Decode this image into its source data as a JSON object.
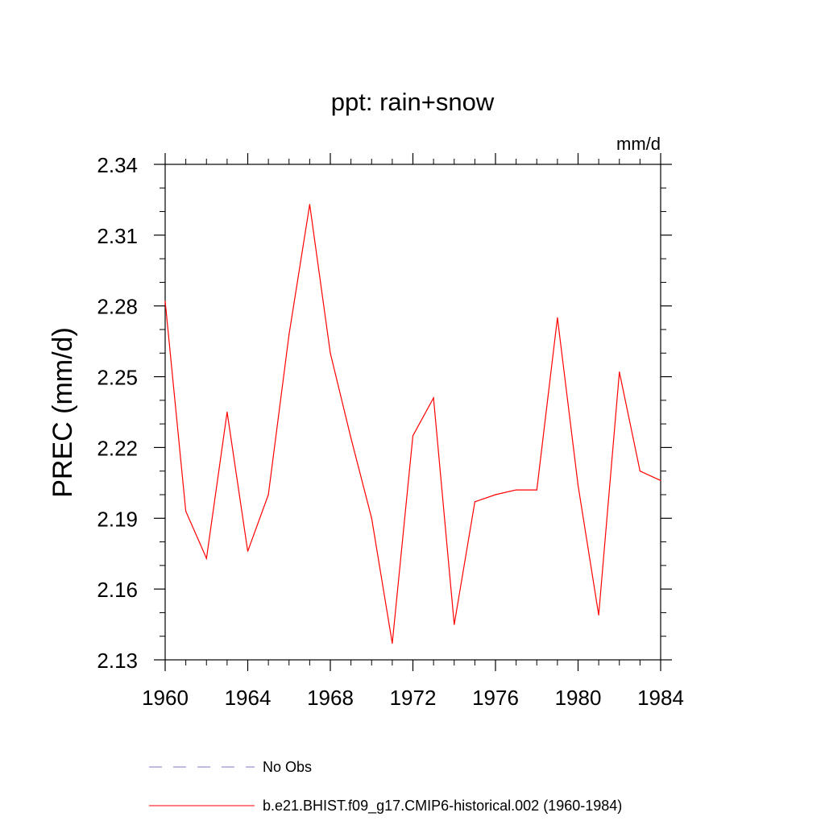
{
  "chart_data": {
    "type": "line",
    "title": "ppt: rain+snow",
    "units": "mm/d",
    "xlabel": "",
    "ylabel": "PREC  (mm/d)",
    "xlim": [
      1960,
      1984
    ],
    "ylim": [
      2.13,
      2.34
    ],
    "xticks": [
      "1960",
      "1964",
      "1968",
      "1972",
      "1976",
      "1980",
      "1984"
    ],
    "yticks": [
      "2.13",
      "2.16",
      "2.19",
      "2.22",
      "2.25",
      "2.28",
      "2.31",
      "2.34"
    ],
    "series": [
      {
        "name": "b.e21.BHIST.f09_g17.CMIP6-historical.002 (1960-1984)",
        "color": "#ff0000",
        "style": "solid",
        "x": [
          1960,
          1961,
          1962,
          1963,
          1964,
          1965,
          1966,
          1967,
          1968,
          1969,
          1970,
          1971,
          1972,
          1973,
          1974,
          1975,
          1976,
          1977,
          1978,
          1979,
          1980,
          1981,
          1982,
          1983,
          1984
        ],
        "values": [
          2.282,
          2.193,
          2.173,
          2.235,
          2.176,
          2.2,
          2.268,
          2.323,
          2.26,
          2.224,
          2.19,
          2.137,
          2.225,
          2.241,
          2.145,
          2.197,
          2.2,
          2.202,
          2.202,
          2.275,
          2.204,
          2.149,
          2.252,
          2.21,
          2.206
        ]
      }
    ],
    "legend": [
      {
        "label": "No Obs",
        "color": "#7777cc",
        "style": "dashed"
      },
      {
        "label": "b.e21.BHIST.f09_g17.CMIP6-historical.002 (1960-1984)",
        "color": "#ff0000",
        "style": "solid"
      }
    ]
  }
}
